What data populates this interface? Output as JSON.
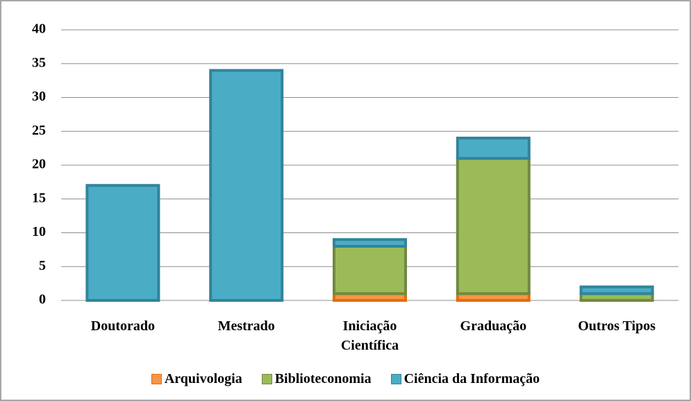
{
  "chart_data": {
    "type": "stacked_bar",
    "categories": [
      "Doutorado",
      "Mestrado",
      "Iniciação Científica",
      "Graduação",
      "Outros Tipos"
    ],
    "series": [
      {
        "name": "Arquivologia",
        "color": "#f79646",
        "values": [
          0,
          0,
          1,
          1,
          0
        ]
      },
      {
        "name": "Biblioteconomia",
        "color": "#9bbb59",
        "values": [
          0,
          0,
          7,
          20,
          1
        ]
      },
      {
        "name": "Ciência da Informação",
        "color": "#4bacc6",
        "values": [
          17,
          34,
          1,
          3,
          1
        ]
      }
    ],
    "ylim": [
      0,
      40
    ],
    "yticks": [
      0,
      5,
      10,
      15,
      20,
      25,
      30,
      35,
      40
    ],
    "grid": true,
    "legend": "bottom"
  }
}
